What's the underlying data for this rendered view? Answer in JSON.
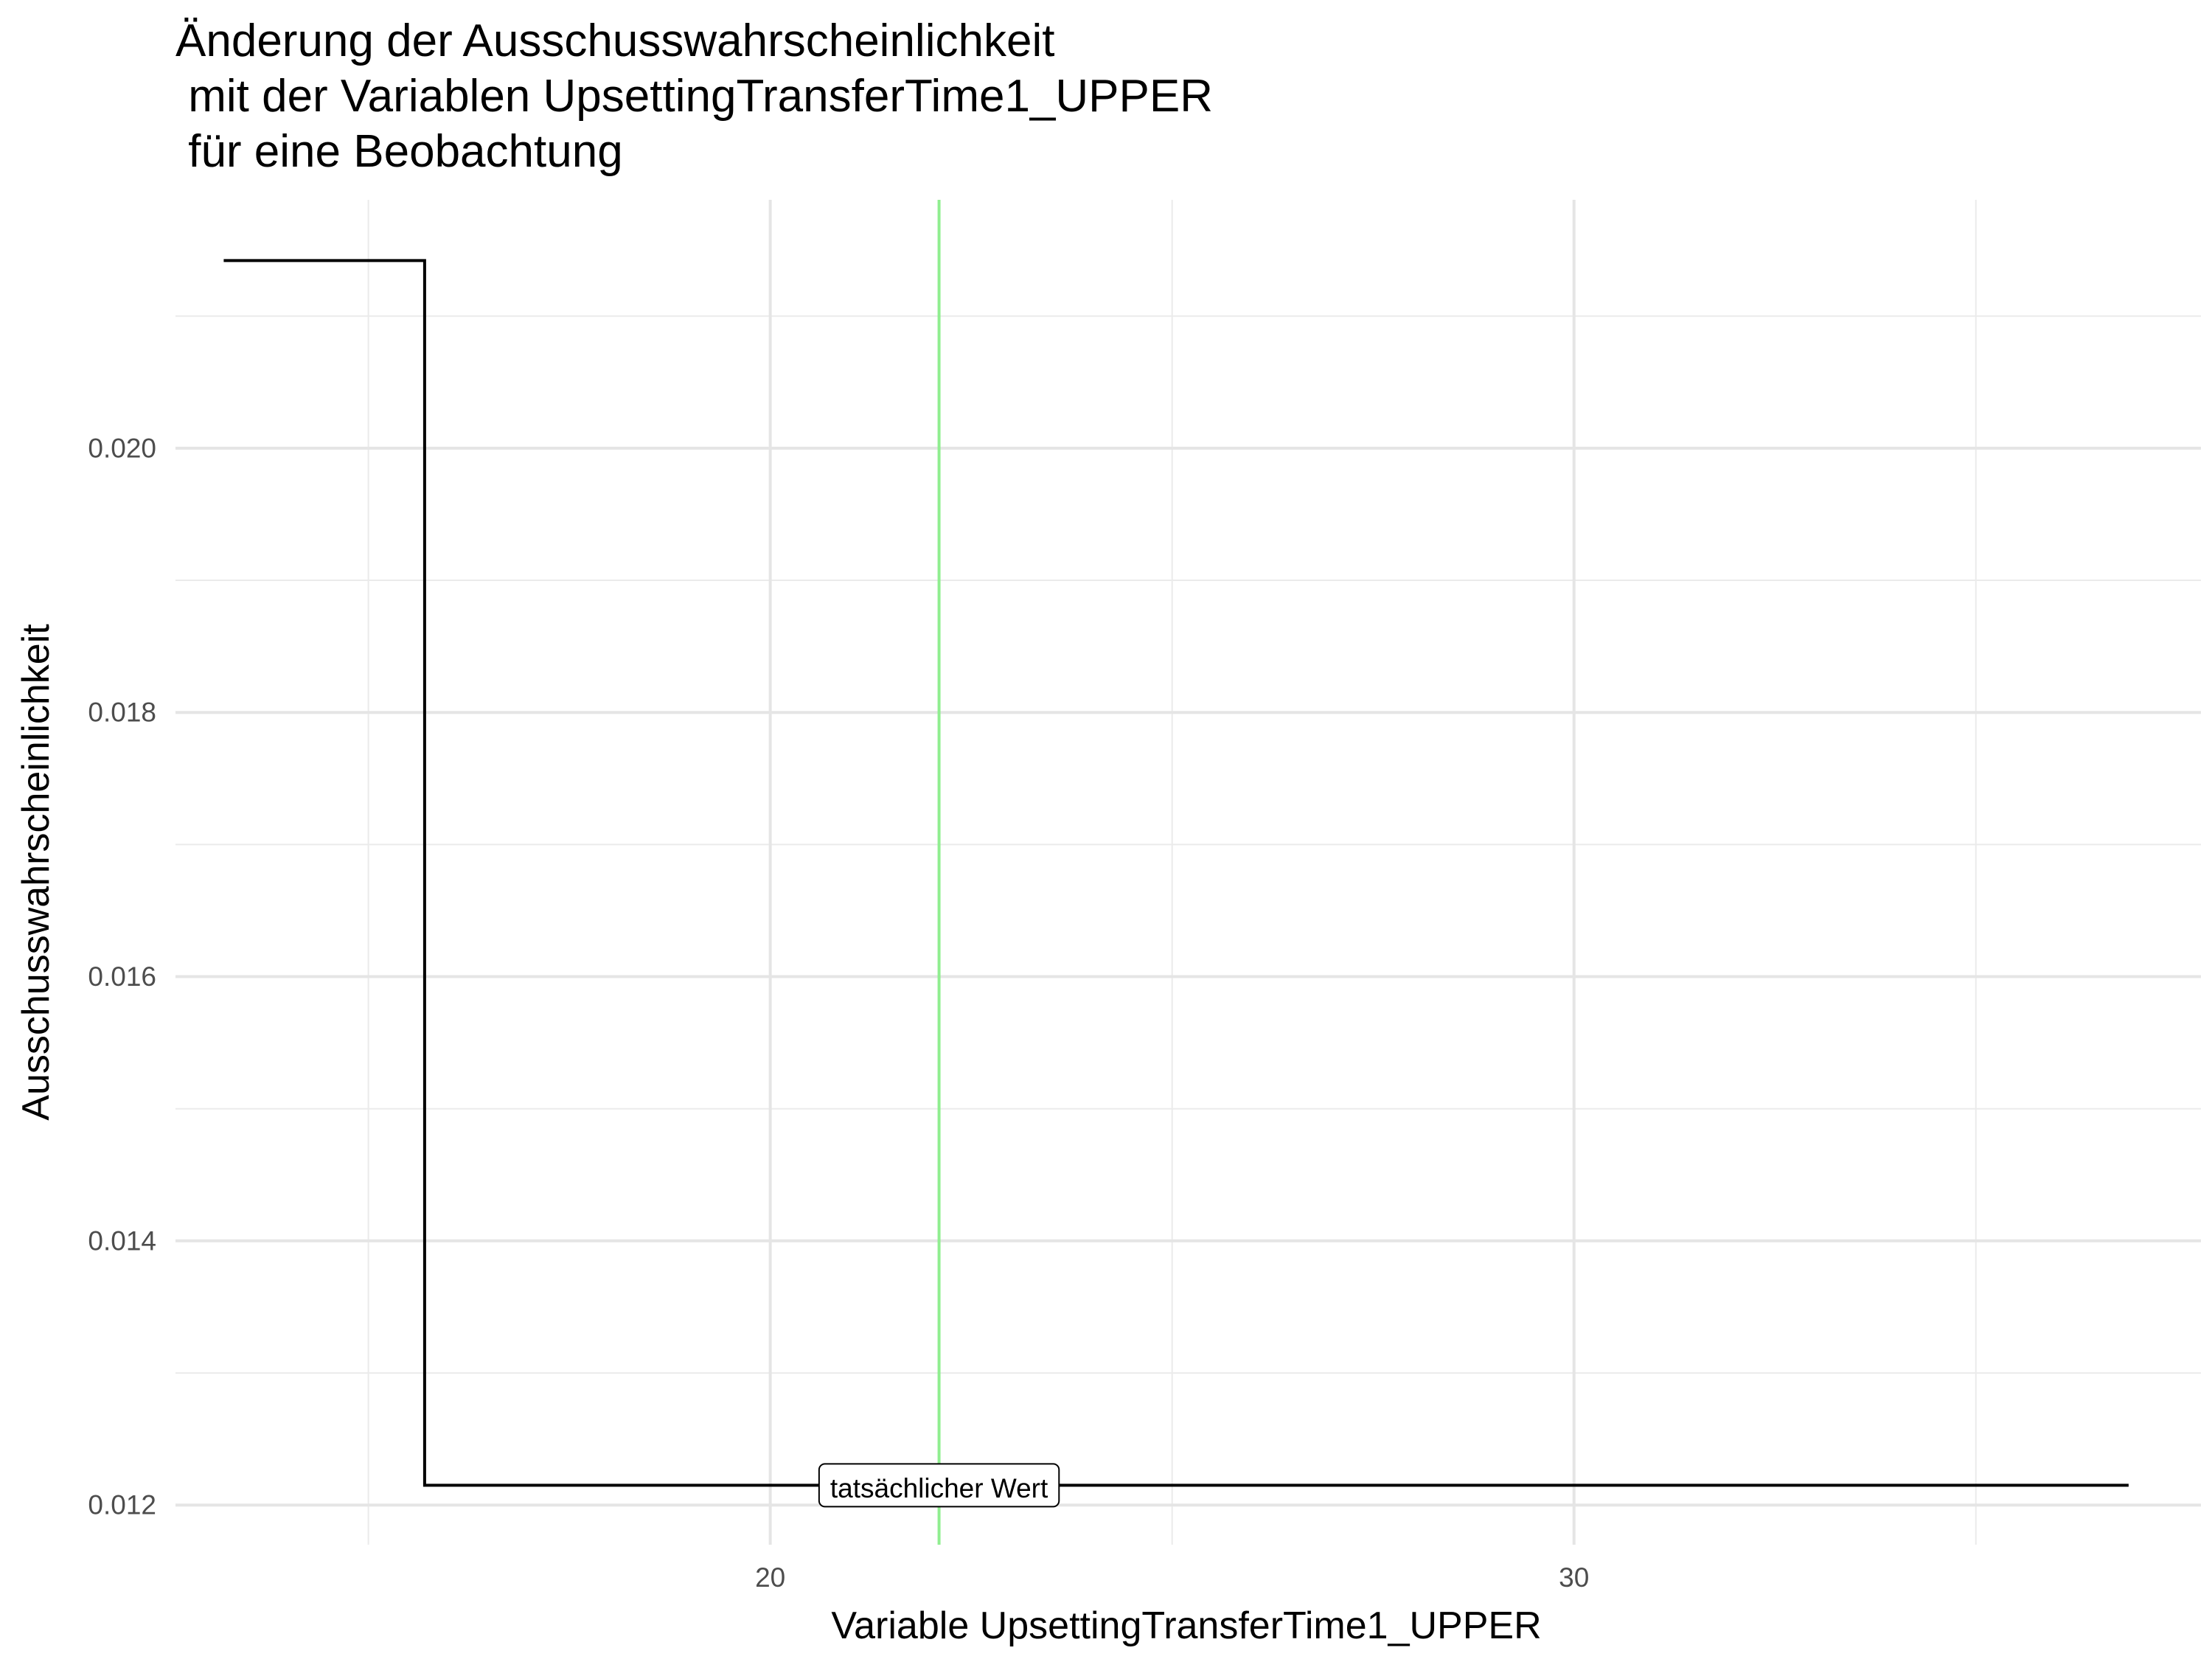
{
  "chart_data": {
    "type": "line",
    "title_lines": [
      "Änderung der Ausschusswahrscheinlichkeit",
      " mit der Variablen UpsettingTransferTime1_UPPER",
      " für eine Beobachtung"
    ],
    "xlabel": "Variable UpsettingTransferTime1_UPPER",
    "ylabel": "Ausschusswahrscheinlichkeit",
    "xlim": [
      12.6,
      37.8
    ],
    "ylim": [
      0.0117,
      0.02188
    ],
    "x_ticks": [
      20,
      30
    ],
    "x_tick_labels": [
      "20",
      "30"
    ],
    "x_minor_ticks": [
      15,
      25,
      35
    ],
    "y_ticks": [
      0.012,
      0.014,
      0.016,
      0.018,
      0.02
    ],
    "y_tick_labels": [
      "0.012",
      "0.014",
      "0.016",
      "0.018",
      "0.020"
    ],
    "y_minor_ticks": [
      0.013,
      0.015,
      0.017,
      0.019,
      0.021
    ],
    "grid": true,
    "series": [
      {
        "step": true,
        "color": "#000000",
        "points": [
          {
            "x": 13.2,
            "y": 0.02142
          },
          {
            "x": 15.7,
            "y": 0.02142
          },
          {
            "x": 15.7,
            "y": 0.01215
          },
          {
            "x": 36.9,
            "y": 0.01215
          }
        ]
      }
    ],
    "vline": {
      "x": 22.1,
      "color": "#90ee90"
    },
    "annotation": {
      "text": "tatsächlicher Wert",
      "x": 22.1,
      "y": 0.01215
    }
  }
}
